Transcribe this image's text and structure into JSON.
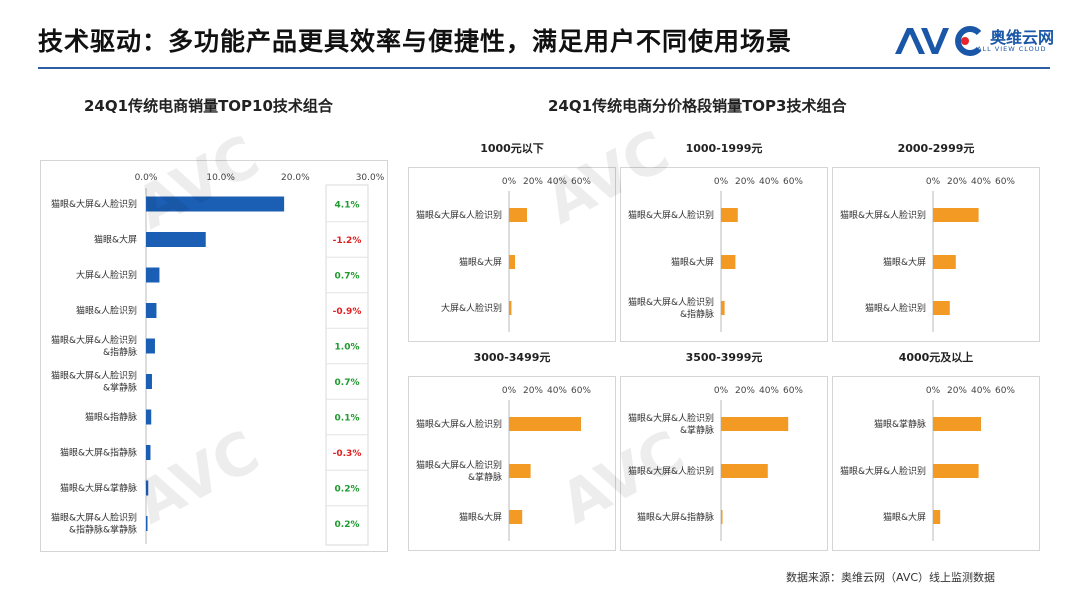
{
  "header": {
    "title": "技术驱动：多功能产品更具效率与便捷性，满足用户不同使用场景",
    "logo_text": "奥维云网",
    "logo_sub": "ALL VIEW CLOUD"
  },
  "left_chart_title": "24Q1传统电商销量TOP10技术组合",
  "right_chart_title": "24Q1传统电商分价格段销量TOP3技术组合",
  "source": "数据来源：奥维云网（AVC）线上监测数据",
  "colors": {
    "blue_bar": "#1b5fb4",
    "orange_bar": "#f39a24",
    "positive": "#1e9a2e",
    "negative": "#e02020",
    "rule": "#2b5ea3"
  },
  "chart_data": [
    {
      "type": "bar",
      "orientation": "horizontal",
      "title": "24Q1传统电商销量TOP10技术组合",
      "categories": [
        "猫眼&大屏&人脸识别",
        "猫眼&大屏",
        "大屏&人脸识别",
        "猫眼&人脸识别",
        "猫眼&大屏&人脸识别\n&指静脉",
        "猫眼&大屏&人脸识别\n&掌静脉",
        "猫眼&指静脉",
        "猫眼&大屏&指静脉",
        "猫眼&大屏&掌静脉",
        "猫眼&大屏&人脸识别\n&指静脉&掌静脉"
      ],
      "values": [
        18.5,
        8.0,
        1.8,
        1.4,
        1.2,
        0.8,
        0.7,
        0.6,
        0.3,
        0.2
      ],
      "xlim": [
        0,
        30
      ],
      "ticks": [
        "0.0%",
        "10.0%",
        "20.0%",
        "30.0%"
      ],
      "changes": [
        "4.1%",
        "-1.2%",
        "0.7%",
        "-0.9%",
        "1.0%",
        "0.7%",
        "0.1%",
        "-0.3%",
        "0.2%",
        "0.2%"
      ],
      "change_sign": [
        1,
        -1,
        1,
        -1,
        1,
        1,
        1,
        -1,
        1,
        1
      ]
    },
    {
      "type": "bar",
      "orientation": "horizontal",
      "title": "1000元以下",
      "categories": [
        "猫眼&大屏&人脸识别",
        "猫眼&大屏",
        "大屏&人脸识别"
      ],
      "values": [
        15,
        5,
        2
      ],
      "xlim": [
        0,
        60
      ],
      "ticks": [
        "0%",
        "20%",
        "40%",
        "60%"
      ]
    },
    {
      "type": "bar",
      "orientation": "horizontal",
      "title": "1000-1999元",
      "categories": [
        "猫眼&大屏&人脸识别",
        "猫眼&大屏",
        "猫眼&大屏&人脸识别\n&指静脉"
      ],
      "values": [
        14,
        12,
        3
      ],
      "xlim": [
        0,
        60
      ],
      "ticks": [
        "0%",
        "20%",
        "40%",
        "60%"
      ]
    },
    {
      "type": "bar",
      "orientation": "horizontal",
      "title": "2000-2999元",
      "categories": [
        "猫眼&大屏&人脸识别",
        "猫眼&大屏",
        "猫眼&人脸识别"
      ],
      "values": [
        38,
        19,
        14
      ],
      "xlim": [
        0,
        60
      ],
      "ticks": [
        "0%",
        "20%",
        "40%",
        "60%"
      ]
    },
    {
      "type": "bar",
      "orientation": "horizontal",
      "title": "3000-3499元",
      "categories": [
        "猫眼&大屏&人脸识别",
        "猫眼&大屏&人脸识别\n&掌静脉",
        "猫眼&大屏"
      ],
      "values": [
        60,
        18,
        11
      ],
      "xlim": [
        0,
        60
      ],
      "ticks": [
        "0%",
        "20%",
        "40%",
        "60%"
      ]
    },
    {
      "type": "bar",
      "orientation": "horizontal",
      "title": "3500-3999元",
      "categories": [
        "猫眼&大屏&人脸识别\n&掌静脉",
        "猫眼&大屏&人脸识别",
        "猫眼&大屏&指静脉"
      ],
      "values": [
        56,
        39,
        1
      ],
      "xlim": [
        0,
        60
      ],
      "ticks": [
        "0%",
        "20%",
        "40%",
        "60%"
      ]
    },
    {
      "type": "bar",
      "orientation": "horizontal",
      "title": "4000元及以上",
      "categories": [
        "猫眼&掌静脉",
        "猫眼&大屏&人脸识别",
        "猫眼&大屏"
      ],
      "values": [
        40,
        38,
        6
      ],
      "xlim": [
        0,
        60
      ],
      "ticks": [
        "0%",
        "20%",
        "40%",
        "60%"
      ]
    }
  ]
}
